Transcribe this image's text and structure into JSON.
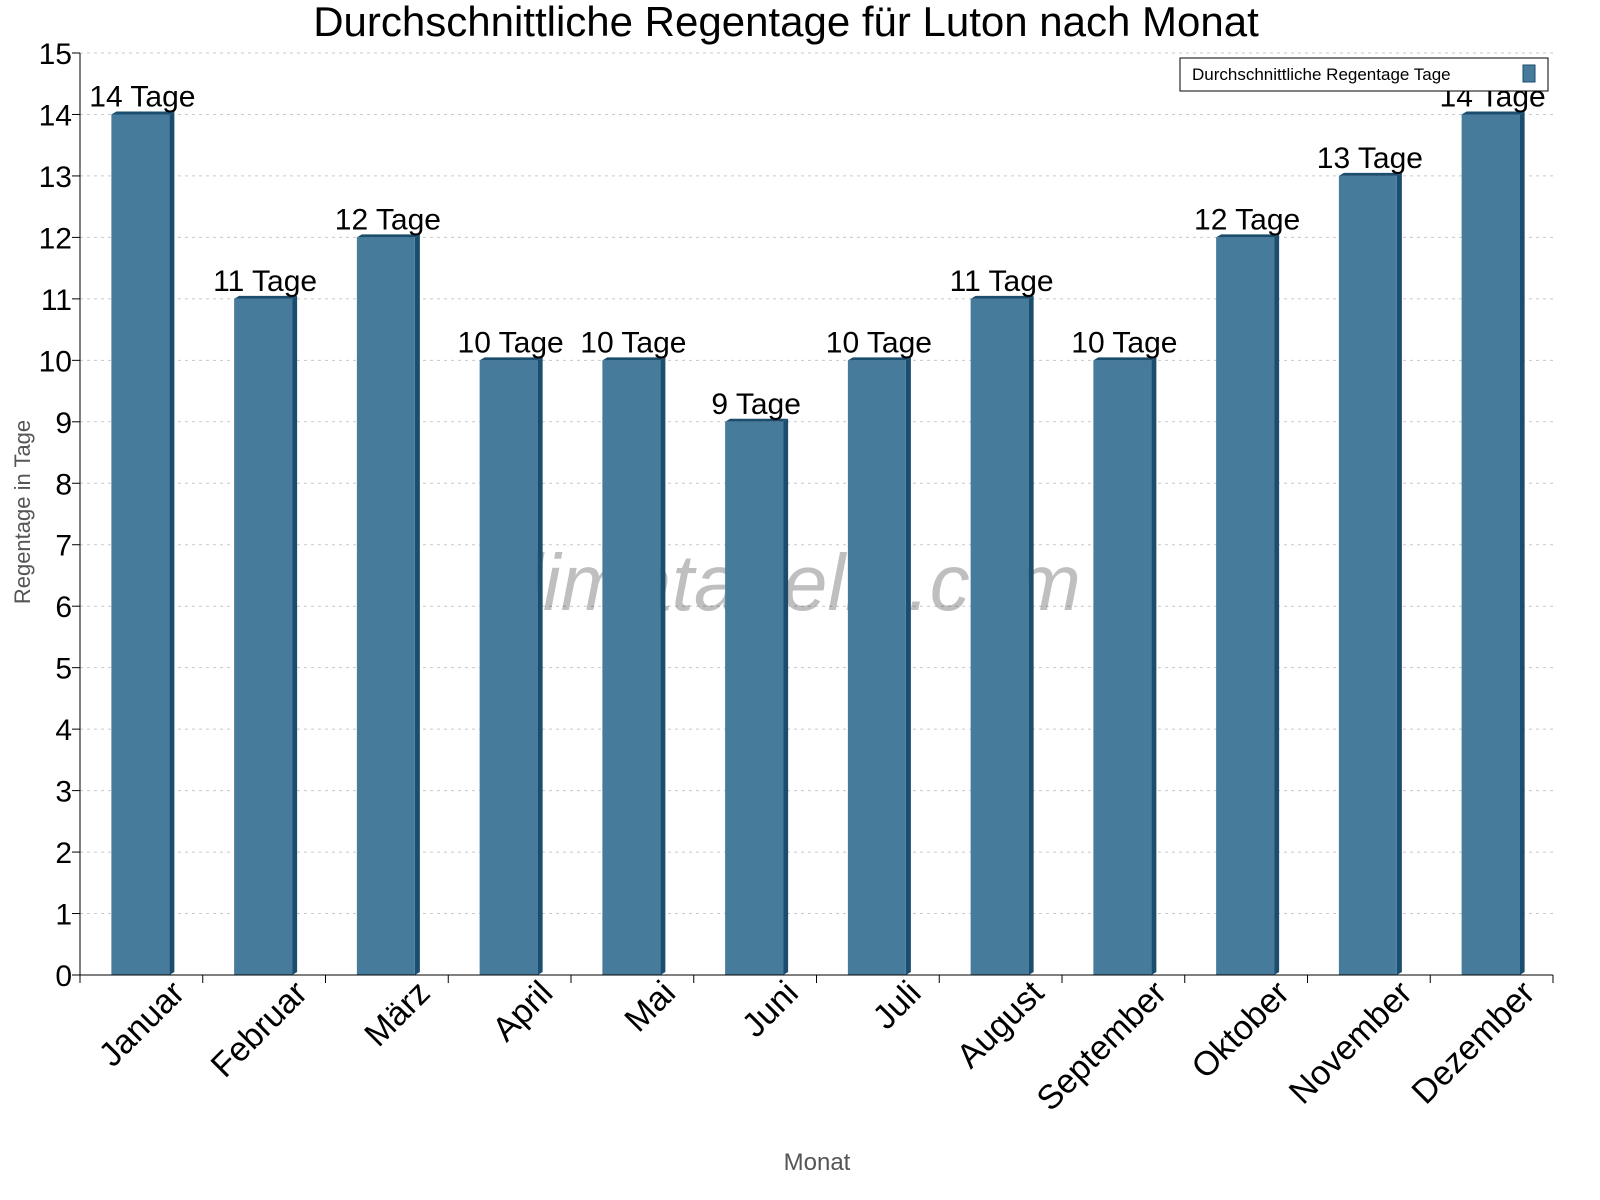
{
  "chart_data": {
    "type": "bar",
    "title": "Durchschnittliche Regentage für Luton nach Monat",
    "xlabel": "Monat",
    "ylabel": "Regentage in Tage",
    "categories": [
      "Januar",
      "Februar",
      "März",
      "April",
      "Mai",
      "Juni",
      "Juli",
      "August",
      "September",
      "Oktober",
      "November",
      "Dezember"
    ],
    "series": [
      {
        "name": "Durchschnittliche Regentage Tage",
        "values": [
          14,
          11,
          12,
          10,
          10,
          9,
          10,
          11,
          10,
          12,
          13,
          14
        ]
      }
    ],
    "data_labels": [
      "14 Tage",
      "11 Tage",
      "12 Tage",
      "10 Tage",
      "10 Tage",
      "9 Tage",
      "10 Tage",
      "11 Tage",
      "10 Tage",
      "12 Tage",
      "13 Tage",
      "14 Tage"
    ],
    "ylim": [
      0,
      15
    ],
    "yticks": [
      0,
      1,
      2,
      3,
      4,
      5,
      6,
      7,
      8,
      9,
      10,
      11,
      12,
      13,
      14,
      15
    ],
    "grid": true,
    "legend_position": "top-right",
    "colors": {
      "bar": "#467b9c",
      "bar_side": "#1b4d6e",
      "grid": "#c8c8c8"
    },
    "watermark": "klimatabelle.com"
  }
}
